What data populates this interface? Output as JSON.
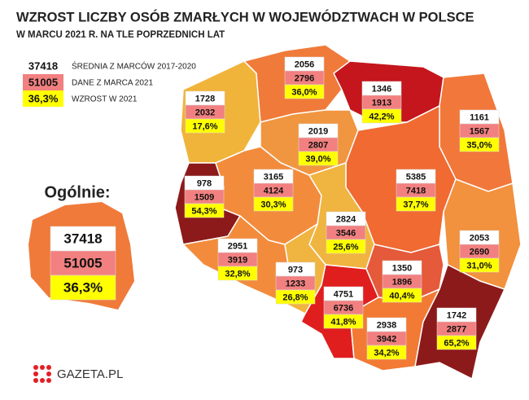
{
  "header": {
    "title": "WZROST LICZBY OSÓB ZMARŁYCH W WOJEWÓDZTWACH W POLSCE",
    "subtitle": "W MARCU 2021 R. NA TLE POPRZEDNICH LAT"
  },
  "legend": [
    {
      "sample": "37418",
      "label": "ŚREDNIA Z MARCÓW 2017-2020"
    },
    {
      "sample": "51005",
      "label": "DANE Z MARCA 2021"
    },
    {
      "sample": "36,3%",
      "label": "WZROST W 2021"
    }
  ],
  "overall": {
    "label": "Ogólnie:",
    "average": "37418",
    "march_2021": "51005",
    "increase": "36,3%"
  },
  "regions": [
    {
      "average": "2056",
      "march_2021": "2796",
      "increase": "36,0%"
    },
    {
      "average": "1346",
      "march_2021": "1913",
      "increase": "42,2%"
    },
    {
      "average": "1728",
      "march_2021": "2032",
      "increase": "17,6%"
    },
    {
      "average": "1161",
      "march_2021": "1567",
      "increase": "35,0%"
    },
    {
      "average": "2019",
      "march_2021": "2807",
      "increase": "39,0%"
    },
    {
      "average": "978",
      "march_2021": "1509",
      "increase": "54,3%"
    },
    {
      "average": "3165",
      "march_2021": "4124",
      "increase": "30,3%"
    },
    {
      "average": "5385",
      "march_2021": "7418",
      "increase": "37,7%"
    },
    {
      "average": "2824",
      "march_2021": "3546",
      "increase": "25,6%"
    },
    {
      "average": "2951",
      "march_2021": "3919",
      "increase": "32,8%"
    },
    {
      "average": "2053",
      "march_2021": "2690",
      "increase": "31,0%"
    },
    {
      "average": "973",
      "march_2021": "1233",
      "increase": "26,8%"
    },
    {
      "average": "1350",
      "march_2021": "1896",
      "increase": "40,4%"
    },
    {
      "average": "4751",
      "march_2021": "6736",
      "increase": "41,8%"
    },
    {
      "average": "2938",
      "march_2021": "3942",
      "increase": "34,2%"
    },
    {
      "average": "1742",
      "march_2021": "2877",
      "increase": "65,2%"
    }
  ],
  "logo": "GAZETA.PL"
}
